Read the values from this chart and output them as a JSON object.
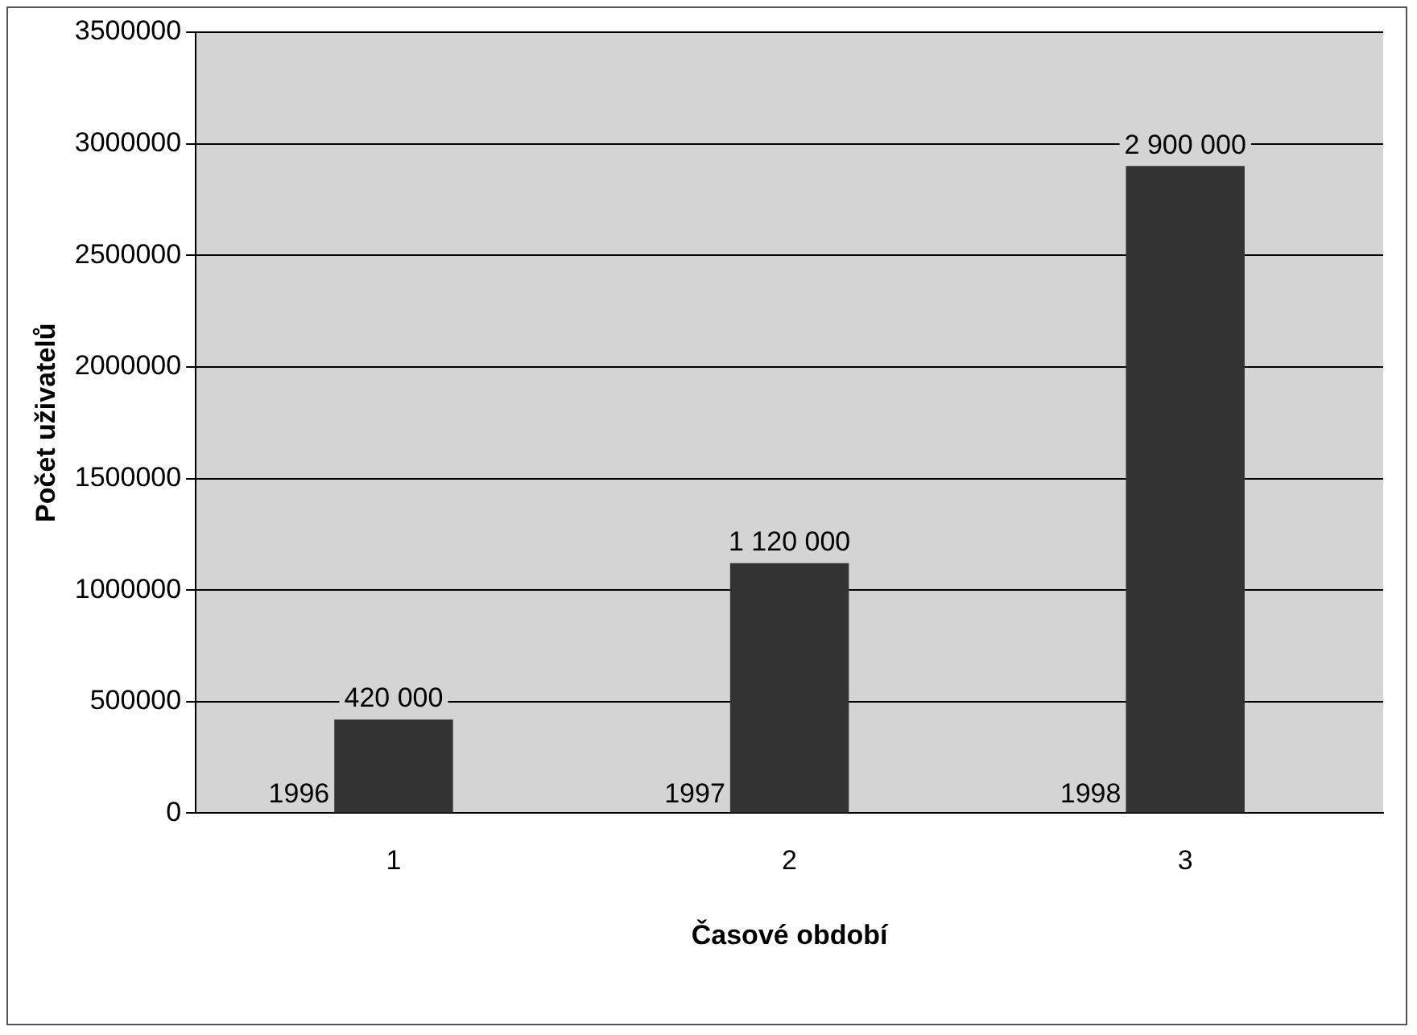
{
  "chart_data": {
    "type": "bar",
    "xlabel": "Časové období",
    "ylabel": "Počet uživatelů",
    "categories": [
      "1",
      "2",
      "3"
    ],
    "values": [
      420000,
      1120000,
      2900000
    ],
    "value_labels": [
      "420 000",
      "1 120 000",
      "2 900 000"
    ],
    "color": "#333333",
    "ylim": [
      0,
      3500000
    ],
    "yticks": [
      0,
      500000,
      1000000,
      1500000,
      2000000,
      2500000,
      3000000,
      3500000
    ],
    "grid": "y",
    "legend": false,
    "annotations": [
      {
        "text": "1996",
        "x": "1",
        "y": 0
      },
      {
        "text": "1997",
        "x": "2",
        "y": 0
      },
      {
        "text": "1998",
        "x": "3",
        "y": 0
      }
    ]
  }
}
